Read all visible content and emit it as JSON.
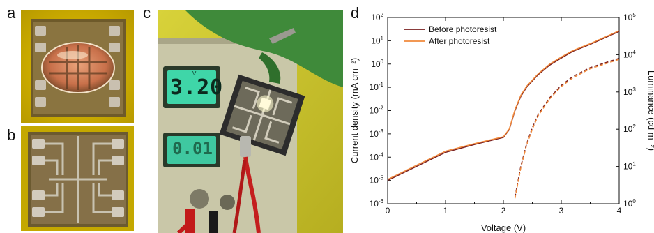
{
  "panels": {
    "a": "a",
    "b": "b",
    "c": "c",
    "d": "d"
  },
  "voltmeter": {
    "upper_reading": "3.20",
    "upper_unit": "V",
    "lower_reading": "0.01"
  },
  "colors": {
    "before_photoresist": "#7a1f1f",
    "after_photoresist": "#f0893b",
    "photo_background": "#c9b000",
    "gold_contacts": "#b8902a"
  },
  "chart_data": {
    "type": "line",
    "xlabel": "Voltage (V)",
    "ylabel_left": "Current density (mA cm⁻²)",
    "ylabel_right": "Luminance (cd m⁻²)",
    "xlim": [
      0,
      4
    ],
    "ylim_left": [
      1e-06,
      100
    ],
    "ylim_right": [
      1,
      100000
    ],
    "log_y_left": true,
    "log_y_right": true,
    "x_ticks": [
      "0",
      "1",
      "2",
      "3",
      "4"
    ],
    "y_left_tick_exponents": [
      -6,
      -5,
      -4,
      -3,
      -2,
      -1,
      0,
      1,
      2
    ],
    "y_right_tick_exponents": [
      0,
      1,
      2,
      3,
      4,
      5
    ],
    "legend_position": "top-left",
    "series": [
      {
        "name": "Before photoresist",
        "axis": "left",
        "style": "solid",
        "x": [
          0,
          0.5,
          1.0,
          1.5,
          2.0,
          2.1,
          2.2,
          2.3,
          2.4,
          2.6,
          2.8,
          3.0,
          3.2,
          3.5,
          4.0
        ],
        "y": [
          1e-05,
          4e-05,
          0.00016,
          0.00035,
          0.0007,
          0.0015,
          0.01,
          0.04,
          0.1,
          0.35,
          0.9,
          1.8,
          3.5,
          7,
          25
        ]
      },
      {
        "name": "After photoresist",
        "axis": "left",
        "style": "solid",
        "x": [
          0,
          0.5,
          1.0,
          1.5,
          2.0,
          2.1,
          2.2,
          2.3,
          2.4,
          2.6,
          2.8,
          3.0,
          3.2,
          3.5,
          4.0
        ],
        "y": [
          1.1e-05,
          4.5e-05,
          0.00018,
          0.00038,
          0.00075,
          0.0016,
          0.011,
          0.045,
          0.11,
          0.38,
          1.0,
          2.0,
          3.8,
          7.5,
          27
        ]
      },
      {
        "name": "Before photoresist",
        "axis": "right",
        "style": "dashed",
        "x": [
          2.2,
          2.3,
          2.4,
          2.5,
          2.6,
          2.8,
          3.0,
          3.2,
          3.5,
          4.0
        ],
        "y": [
          1.5,
          10,
          40,
          110,
          250,
          700,
          1500,
          2600,
          4500,
          8000
        ]
      },
      {
        "name": "After photoresist",
        "axis": "right",
        "style": "dashed",
        "x": [
          2.2,
          2.3,
          2.4,
          2.5,
          2.6,
          2.8,
          3.0,
          3.2,
          3.5,
          4.0
        ],
        "y": [
          1.4,
          9,
          37,
          100,
          230,
          650,
          1400,
          2400,
          4200,
          7500
        ]
      }
    ]
  }
}
